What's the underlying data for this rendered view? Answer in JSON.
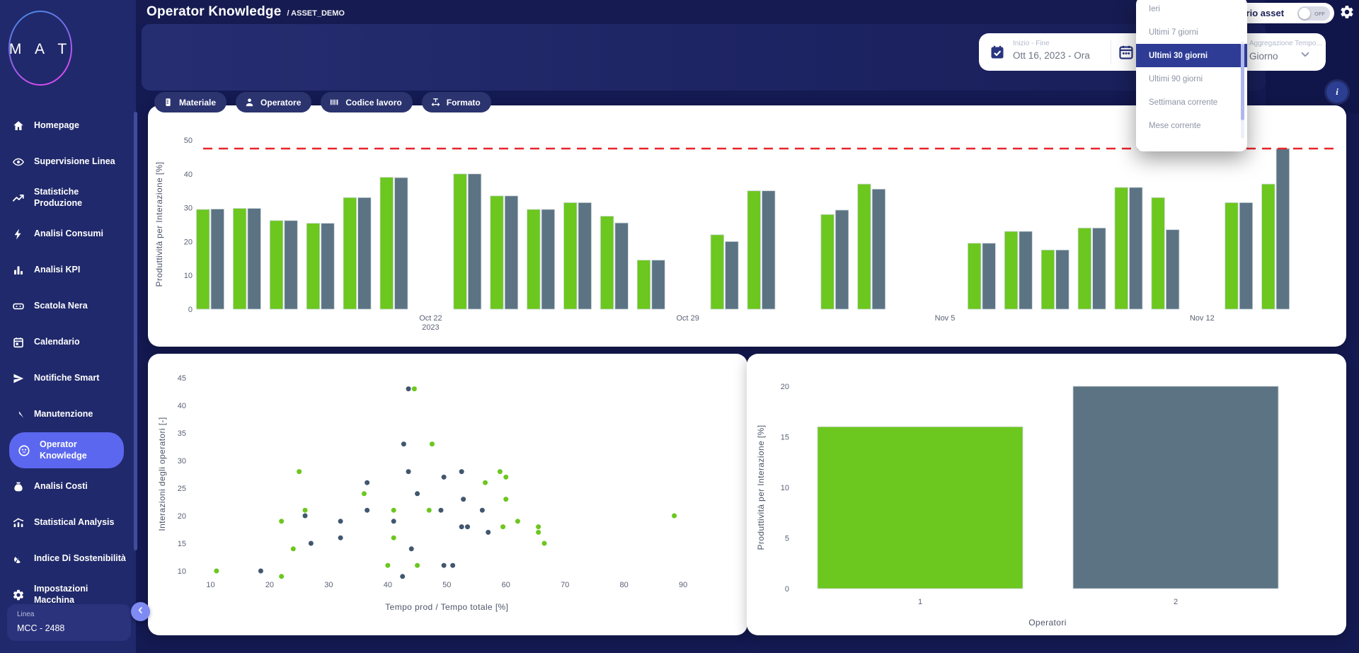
{
  "app": {
    "logo_text": "MAT"
  },
  "header": {
    "title": "Operator Knowledge",
    "breadcrumb": "/ ASSET_DEMO",
    "asset_toggle_label": "Calendario asset",
    "asset_toggle_state": "OFF",
    "gear_icon": "gear-icon",
    "info_icon": "info-icon",
    "info_glyph": "i"
  },
  "sidebar": {
    "items": [
      {
        "label": "Homepage",
        "icon": "home-icon",
        "active": false
      },
      {
        "label": "Supervisione Linea",
        "icon": "eye-icon",
        "active": false
      },
      {
        "label": "Statistiche Produzione",
        "icon": "trend-up-icon",
        "active": false
      },
      {
        "label": "Analisi Consumi",
        "icon": "bolt-icon",
        "active": false
      },
      {
        "label": "Analisi KPI",
        "icon": "bar-chart-icon",
        "active": false
      },
      {
        "label": "Scatola Nera",
        "icon": "black-box-icon",
        "active": false
      },
      {
        "label": "Calendario",
        "icon": "calendar-icon",
        "active": false
      },
      {
        "label": "Notifiche Smart",
        "icon": "send-icon",
        "active": false
      },
      {
        "label": "Manutenzione",
        "icon": "wrench-icon",
        "active": false
      },
      {
        "label": "Operator Knowledge",
        "icon": "operator-knowledge-icon",
        "active": true
      },
      {
        "label": "Analisi Costi",
        "icon": "money-bag-icon",
        "active": false
      },
      {
        "label": "Statistical Analysis",
        "icon": "stat-chart-icon",
        "active": false
      },
      {
        "label": "Indice Di Sostenibilità",
        "icon": "leaf-icon",
        "active": false
      },
      {
        "label": "Impostazioni Macchina",
        "icon": "gear-icon",
        "active": false
      }
    ],
    "linea_label": "Linea",
    "linea_value": "MCC - 2488",
    "collapse_icon": "chevron-left-icon"
  },
  "filters": {
    "chips": [
      {
        "label": "Materiale",
        "icon": "material-icon"
      },
      {
        "label": "Operatore",
        "icon": "person-icon"
      },
      {
        "label": "Codice lavoro",
        "icon": "barcode-icon"
      },
      {
        "label": "Formato",
        "icon": "format-width-icon"
      }
    ]
  },
  "date_range": {
    "label": "Inizio - Fine",
    "value": "Ott 16, 2023 - Ora",
    "start_icon": "calendar-check-icon",
    "end_icon": "calendar-range-icon"
  },
  "aggregation": {
    "label": "Aggregazione Tempo...",
    "value": "Giorno",
    "chevron_icon": "chevron-down-icon"
  },
  "dropdown": {
    "options": [
      "Ieri",
      "Ultimi 7 giorni",
      "Ultimi 30 giorni",
      "Ultimi 90 giorni",
      "Settimana corrente",
      "Mese corrente"
    ],
    "selected": "Ultimi 30 giorni"
  },
  "colors": {
    "green": "#6cc71e",
    "slate": "#5b7383",
    "scatter_dark": "#41576f",
    "reference_red": "#e8252b",
    "accent_active": "#5b67ee",
    "dropdown_selected": "#2e3c96"
  },
  "chart_data": [
    {
      "type": "bar",
      "title": "",
      "ylabel": "Produttività per Interazione [%]",
      "ylim": [
        0,
        50
      ],
      "yticks": [
        0,
        10,
        20,
        30,
        40,
        50
      ],
      "reference_line": 47.5,
      "grid": false,
      "legend": "none",
      "x_tick_labels": [
        {
          "index": 6,
          "lines": [
            "Oct 22",
            "2023"
          ]
        },
        {
          "index": 13,
          "lines": [
            "Oct 29"
          ]
        },
        {
          "index": 20,
          "lines": [
            "Nov 5"
          ]
        },
        {
          "index": 27,
          "lines": [
            "Nov 12"
          ]
        }
      ],
      "num_days": 30,
      "series": [
        {
          "color": "#6cc71e",
          "values": [
            29.5,
            29.8,
            26.2,
            25.4,
            33,
            39,
            null,
            40,
            33.5,
            29.5,
            31.5,
            27.5,
            14.5,
            null,
            22,
            35,
            null,
            28,
            37,
            null,
            null,
            19.5,
            23,
            17.5,
            24,
            36,
            33,
            null,
            31.5,
            37
          ]
        },
        {
          "color": "#5b7383",
          "values": [
            29.6,
            29.8,
            26.2,
            25.4,
            33,
            38.9,
            null,
            40,
            33.5,
            29.5,
            31.5,
            25.5,
            14.5,
            null,
            20,
            35,
            null,
            29.3,
            35.5,
            null,
            null,
            19.5,
            23,
            17.5,
            24,
            36,
            23.5,
            null,
            31.5,
            47.5
          ]
        }
      ]
    },
    {
      "type": "scatter",
      "xlabel": "Tempo prod / Tempo totale [%]",
      "ylabel": "Interazioni degli operatori [-]",
      "xticks": [
        10,
        20,
        30,
        40,
        50,
        60,
        70,
        80,
        90
      ],
      "yticks": [
        10,
        15,
        20,
        25,
        30,
        35,
        40,
        45
      ],
      "xlim": [
        5,
        95
      ],
      "ylim": [
        7,
        47
      ],
      "grid": false,
      "series": [
        {
          "color": "#6cc71e",
          "points": [
            [
              11,
              10
            ],
            [
              22,
              9
            ],
            [
              22,
              19
            ],
            [
              24,
              14
            ],
            [
              25,
              28
            ],
            [
              26,
              21
            ],
            [
              36,
              24
            ],
            [
              40,
              11
            ],
            [
              41,
              21
            ],
            [
              41,
              16
            ],
            [
              44.5,
              43
            ],
            [
              45,
              11
            ],
            [
              47,
              21
            ],
            [
              47.5,
              33
            ],
            [
              56.5,
              26
            ],
            [
              59,
              28
            ],
            [
              59.5,
              18
            ],
            [
              60,
              27
            ],
            [
              60,
              23
            ],
            [
              62,
              19
            ],
            [
              65.5,
              18
            ],
            [
              65.5,
              17
            ],
            [
              66.5,
              15
            ],
            [
              88.5,
              20
            ]
          ]
        },
        {
          "color": "#41576f",
          "points": [
            [
              18.5,
              10
            ],
            [
              26,
              20
            ],
            [
              27,
              15
            ],
            [
              32,
              19
            ],
            [
              32,
              16
            ],
            [
              36.5,
              26
            ],
            [
              36.5,
              21
            ],
            [
              41,
              19
            ],
            [
              42.5,
              9
            ],
            [
              42.7,
              33
            ],
            [
              43.5,
              43
            ],
            [
              43.5,
              28
            ],
            [
              44,
              14
            ],
            [
              45,
              24
            ],
            [
              49,
              21
            ],
            [
              49.5,
              27
            ],
            [
              49.5,
              11
            ],
            [
              51,
              11
            ],
            [
              52.5,
              28
            ],
            [
              52.5,
              18
            ],
            [
              52.8,
              23
            ],
            [
              53.5,
              18
            ],
            [
              56,
              21
            ],
            [
              57,
              17
            ]
          ]
        }
      ]
    },
    {
      "type": "bar",
      "categories": [
        "1",
        "2"
      ],
      "values": [
        16,
        20
      ],
      "bar_colors": [
        "#6cc71e",
        "#5b7383"
      ],
      "xlabel": "Operatori",
      "ylabel": "Produttività per Interazione [%]",
      "yticks": [
        0,
        5,
        10,
        15,
        20
      ],
      "ylim": [
        0,
        20
      ],
      "grid": false
    }
  ]
}
